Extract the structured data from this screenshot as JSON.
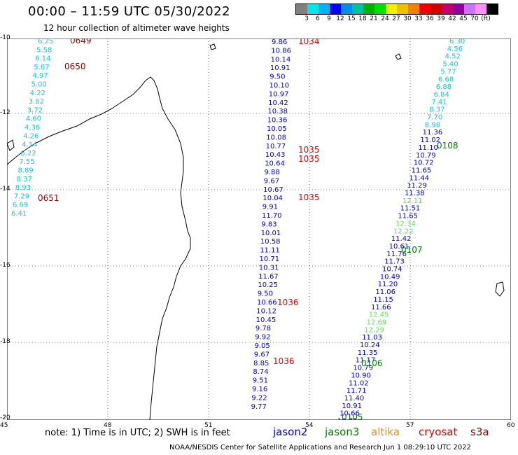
{
  "title": "00:00 – 11:59 UTC 05/30/2022",
  "subtitle": "12 hour collection of altimeter wave heights",
  "colorbar": {
    "colors": [
      "#808080",
      "#00e8e8",
      "#00b0f0",
      "#0000f0",
      "#0090e0",
      "#00c0a0",
      "#00b000",
      "#00e000",
      "#f0f000",
      "#f0c000",
      "#f08000",
      "#f00000",
      "#d00000",
      "#c00070",
      "#9000a0",
      "#d070ff",
      "#ff90ff",
      "#000000"
    ],
    "labels": [
      "3",
      "6",
      "9",
      "12",
      "15",
      "18",
      "21",
      "24",
      "27",
      "30",
      "33",
      "36",
      "39",
      "42",
      "45",
      "70",
      "(ft)"
    ]
  },
  "axes": {
    "x_ticks": [
      "45",
      "48",
      "51",
      "54",
      "57",
      "60"
    ],
    "y_ticks": [
      "-10",
      "-12",
      "-14",
      "-16",
      "-18",
      "-20"
    ]
  },
  "note": "note:  1) Time is in UTC;  2) SWH is in feet",
  "legend": [
    {
      "name": "jason2",
      "color": "#0000e0"
    },
    {
      "name": "jason3",
      "color": "#008000"
    },
    {
      "name": "altika",
      "color": "#f09000"
    },
    {
      "name": "cryosat",
      "color": "#e00000"
    },
    {
      "name": "s3a",
      "color": "#900000"
    }
  ],
  "credits": "NOAA/NESDIS Center for Satellite Applications and Research     Jun  1 08:29:10 UTC 2022",
  "tracks": [
    {
      "color": "#10c8e0",
      "labels": [
        "6.25",
        "5.58",
        "6.14",
        "5.67",
        "4.97",
        "5.00",
        "4.22",
        "3.82",
        "3.72",
        "4.60",
        "4.36",
        "4.26",
        "4.14",
        "6.22",
        "7.55",
        "8.89",
        "8.37",
        "8.93",
        "7.29",
        "6.69",
        "6.41"
      ]
    },
    {
      "color": "#0000e0",
      "labels": [
        "9.86",
        "10.86",
        "10.14",
        "10.91",
        "9.50",
        "10.10",
        "10.97",
        "10.42",
        "10.38",
        "10.36",
        "10.05",
        "10.08",
        "10.77",
        "10.43",
        "10.64",
        "9.88",
        "9.67",
        "10.67",
        "10.04",
        "9.91",
        "11.70",
        "9.83",
        "10.01",
        "10.58",
        "11.11",
        "10.71",
        "10.31",
        "11.67",
        "10.25",
        "9.50",
        "10.66",
        "10.12",
        "10.45",
        "9.78",
        "9.92",
        "9.05",
        "9.67",
        "8.85",
        "8.74",
        "9.51",
        "9.16",
        "9.22",
        "9.77"
      ]
    },
    {
      "color": "#10c8e0",
      "labels": [
        "6.30",
        "4.56",
        "4.52",
        "5.40",
        "5.77",
        "6.68",
        "6.88",
        "6.84",
        "7.41",
        "8.37",
        "7.70",
        "8.98"
      ]
    },
    {
      "color": "#0000e0",
      "labels": [
        "11.36",
        "11.02",
        "11.10",
        "10.79",
        "10.72",
        "11.65",
        "11.44",
        "11.29",
        "11.38"
      ]
    },
    {
      "color": "#60e060",
      "labels": [
        "12.11"
      ]
    },
    {
      "color": "#0000e0",
      "labels": [
        "11.51",
        "11.65"
      ]
    },
    {
      "color": "#60e060",
      "labels": [
        "12.34",
        "12.22"
      ]
    },
    {
      "color": "#0000e0",
      "labels": [
        "11.42",
        "10.61",
        "11.76",
        "11.73",
        "10.74",
        "10.49",
        "11.20",
        "11.06",
        "11.15",
        "11.66"
      ]
    },
    {
      "color": "#60e060",
      "labels": [
        "12.45",
        "12.69",
        "12.29"
      ]
    },
    {
      "color": "#0000e0",
      "labels": [
        "11.03",
        "10.24",
        "11.35",
        "11.17",
        "10.79",
        "10.90",
        "11.02",
        "11.71",
        "11.40",
        "10.91",
        "10.66",
        "10.71"
      ]
    }
  ],
  "time_labels": [
    {
      "text": "0649",
      "color": "#900000"
    },
    {
      "text": "0650",
      "color": "#900000"
    },
    {
      "text": "0651",
      "color": "#900000"
    },
    {
      "text": "1034",
      "color": "#e00000"
    },
    {
      "text": "1035",
      "color": "#e00000"
    },
    {
      "text": "1035",
      "color": "#e00000"
    },
    {
      "text": "1035",
      "color": "#e00000"
    },
    {
      "text": "1036",
      "color": "#e00000"
    },
    {
      "text": "1036",
      "color": "#e00000"
    },
    {
      "text": "0108",
      "color": "#008000"
    },
    {
      "text": "0107",
      "color": "#008000"
    },
    {
      "text": "0106",
      "color": "#008000"
    },
    {
      "text": "0105",
      "color": "#008000"
    }
  ]
}
